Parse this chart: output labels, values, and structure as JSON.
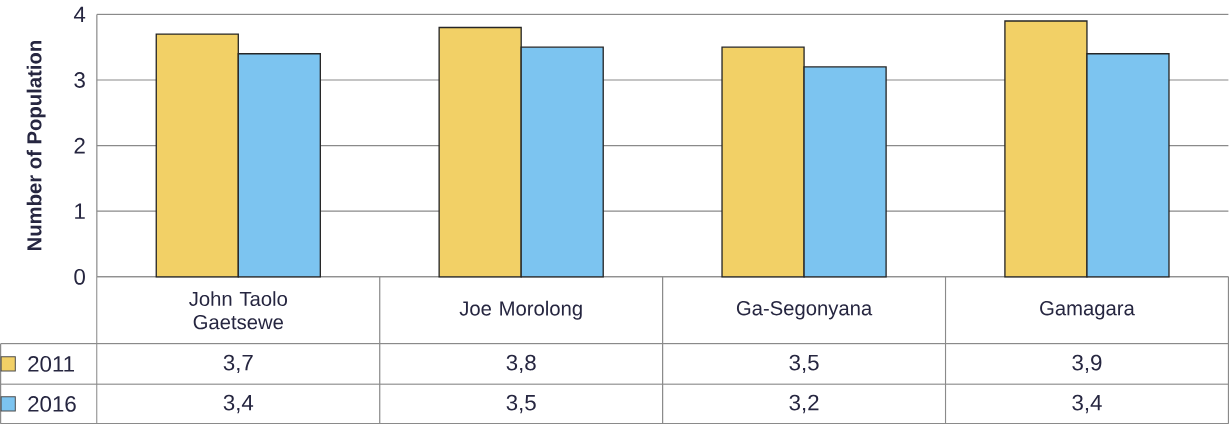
{
  "chart_data": {
    "type": "bar",
    "ylabel": "Number of Population",
    "categories": [
      "John Taolo Gaetsewe",
      "Joe Morolong",
      "Ga-Segonyana",
      "Gamagara"
    ],
    "series": [
      {
        "name": "2011",
        "color": "#f2d066",
        "values": [
          3.7,
          3.8,
          3.5,
          3.9
        ],
        "value_labels": [
          "3,7",
          "3,8",
          "3,5",
          "3,9"
        ]
      },
      {
        "name": "2016",
        "color": "#7cc4f0",
        "values": [
          3.4,
          3.5,
          3.2,
          3.4
        ],
        "value_labels": [
          "3,4",
          "3,5",
          "3,2",
          "3,4"
        ]
      }
    ],
    "ylim": [
      0,
      4
    ],
    "yticks": [
      0,
      1,
      2,
      3,
      4
    ],
    "grid": "y",
    "legend": "bottom left"
  }
}
